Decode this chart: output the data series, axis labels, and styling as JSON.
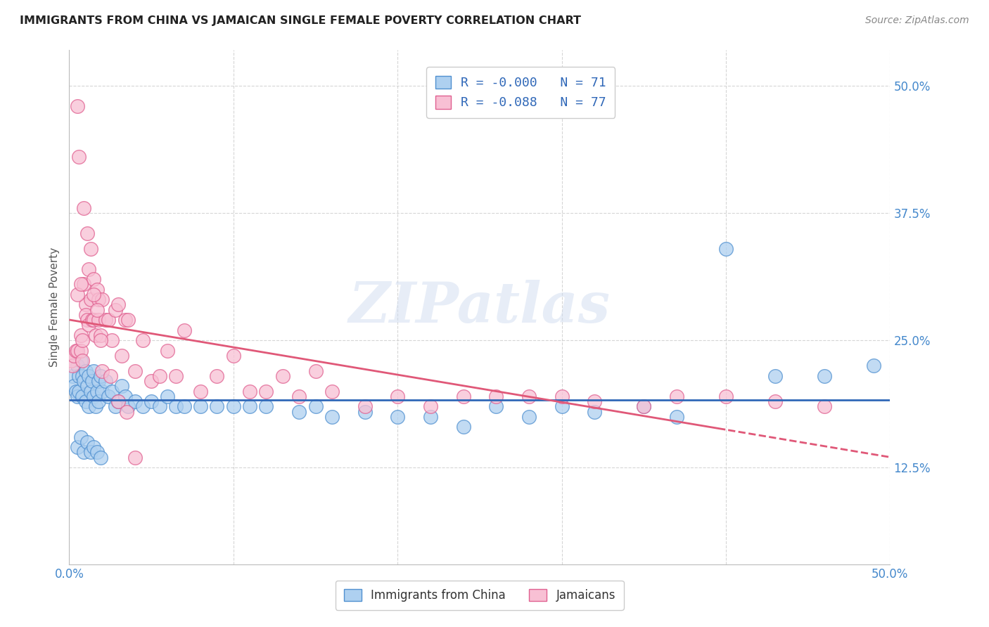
{
  "title": "IMMIGRANTS FROM CHINA VS JAMAICAN SINGLE FEMALE POVERTY CORRELATION CHART",
  "source": "Source: ZipAtlas.com",
  "ylabel": "Single Female Poverty",
  "legend_label1": "R = -0.000   N = 71",
  "legend_label2": "R = -0.088   N = 77",
  "legend_footer1": "Immigrants from China",
  "legend_footer2": "Jamaicans",
  "ytick_labels": [
    "12.5%",
    "25.0%",
    "37.5%",
    "50.0%"
  ],
  "ytick_values": [
    0.125,
    0.25,
    0.375,
    0.5
  ],
  "xlim": [
    0.0,
    0.5
  ],
  "ylim": [
    0.03,
    0.535
  ],
  "color_blue": "#AED0F0",
  "color_pink": "#F8C0D4",
  "edge_blue": "#5090D0",
  "edge_pink": "#E06090",
  "line_blue": "#3068B8",
  "line_pink": "#E05878",
  "watermark": "ZIPatlas",
  "china_x": [
    0.002,
    0.003,
    0.004,
    0.005,
    0.005,
    0.006,
    0.006,
    0.007,
    0.008,
    0.008,
    0.009,
    0.01,
    0.01,
    0.011,
    0.012,
    0.012,
    0.013,
    0.014,
    0.015,
    0.015,
    0.016,
    0.017,
    0.018,
    0.018,
    0.019,
    0.02,
    0.022,
    0.024,
    0.026,
    0.028,
    0.03,
    0.032,
    0.034,
    0.036,
    0.04,
    0.045,
    0.05,
    0.055,
    0.06,
    0.065,
    0.07,
    0.08,
    0.09,
    0.1,
    0.11,
    0.12,
    0.14,
    0.15,
    0.16,
    0.18,
    0.2,
    0.22,
    0.24,
    0.26,
    0.28,
    0.3,
    0.32,
    0.35,
    0.37,
    0.4,
    0.43,
    0.46,
    0.49,
    0.005,
    0.007,
    0.009,
    0.011,
    0.013,
    0.015,
    0.017,
    0.019
  ],
  "china_y": [
    0.215,
    0.205,
    0.2,
    0.225,
    0.195,
    0.215,
    0.2,
    0.23,
    0.215,
    0.195,
    0.21,
    0.22,
    0.19,
    0.205,
    0.215,
    0.185,
    0.2,
    0.21,
    0.195,
    0.22,
    0.185,
    0.2,
    0.21,
    0.19,
    0.215,
    0.2,
    0.21,
    0.195,
    0.2,
    0.185,
    0.19,
    0.205,
    0.195,
    0.185,
    0.19,
    0.185,
    0.19,
    0.185,
    0.195,
    0.185,
    0.185,
    0.185,
    0.185,
    0.185,
    0.185,
    0.185,
    0.18,
    0.185,
    0.175,
    0.18,
    0.175,
    0.175,
    0.165,
    0.185,
    0.175,
    0.185,
    0.18,
    0.185,
    0.175,
    0.34,
    0.215,
    0.215,
    0.225,
    0.145,
    0.155,
    0.14,
    0.15,
    0.14,
    0.145,
    0.14,
    0.135
  ],
  "jamaica_x": [
    0.001,
    0.002,
    0.003,
    0.004,
    0.005,
    0.005,
    0.006,
    0.007,
    0.007,
    0.008,
    0.008,
    0.009,
    0.01,
    0.01,
    0.011,
    0.012,
    0.012,
    0.013,
    0.014,
    0.015,
    0.015,
    0.016,
    0.017,
    0.018,
    0.018,
    0.019,
    0.02,
    0.022,
    0.024,
    0.026,
    0.028,
    0.03,
    0.032,
    0.034,
    0.036,
    0.04,
    0.045,
    0.05,
    0.055,
    0.06,
    0.065,
    0.07,
    0.08,
    0.09,
    0.1,
    0.11,
    0.12,
    0.13,
    0.14,
    0.15,
    0.16,
    0.18,
    0.2,
    0.22,
    0.24,
    0.26,
    0.28,
    0.3,
    0.32,
    0.35,
    0.37,
    0.4,
    0.43,
    0.46,
    0.005,
    0.007,
    0.009,
    0.011,
    0.013,
    0.015,
    0.017,
    0.019,
    0.02,
    0.025,
    0.03,
    0.035,
    0.04
  ],
  "jamaica_y": [
    0.23,
    0.225,
    0.235,
    0.24,
    0.48,
    0.24,
    0.43,
    0.255,
    0.24,
    0.25,
    0.23,
    0.305,
    0.285,
    0.275,
    0.27,
    0.32,
    0.265,
    0.29,
    0.27,
    0.31,
    0.27,
    0.255,
    0.3,
    0.29,
    0.27,
    0.255,
    0.29,
    0.27,
    0.27,
    0.25,
    0.28,
    0.285,
    0.235,
    0.27,
    0.27,
    0.22,
    0.25,
    0.21,
    0.215,
    0.24,
    0.215,
    0.26,
    0.2,
    0.215,
    0.235,
    0.2,
    0.2,
    0.215,
    0.195,
    0.22,
    0.2,
    0.185,
    0.195,
    0.185,
    0.195,
    0.195,
    0.195,
    0.195,
    0.19,
    0.185,
    0.195,
    0.195,
    0.19,
    0.185,
    0.295,
    0.305,
    0.38,
    0.355,
    0.34,
    0.295,
    0.28,
    0.25,
    0.22,
    0.215,
    0.19,
    0.18,
    0.135
  ]
}
